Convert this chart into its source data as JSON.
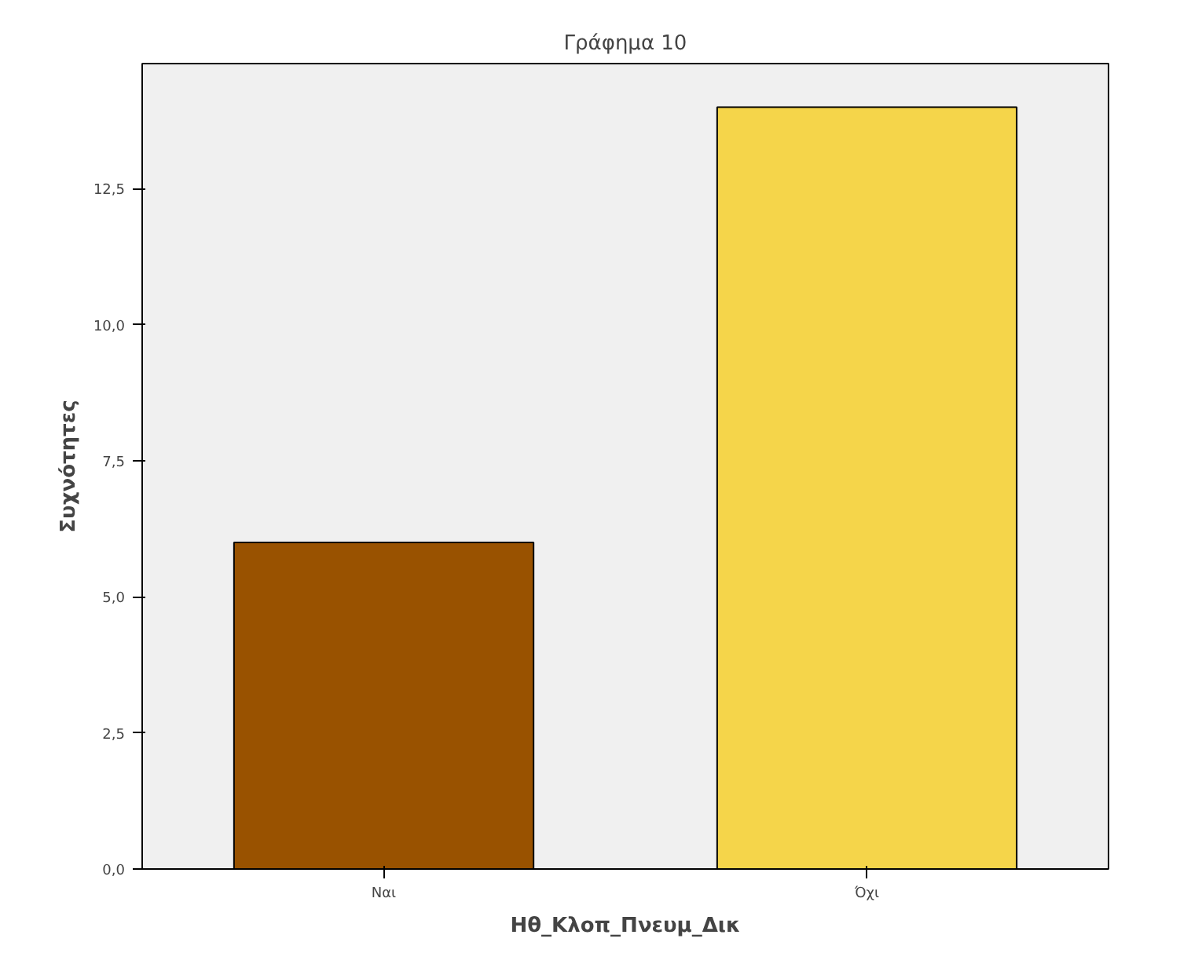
{
  "chart_data": {
    "type": "bar",
    "title": "Γράφημα 10",
    "xlabel": "Ηθ_Κλοπ_Πνευμ_Δικ",
    "ylabel": "Συχνότητες",
    "categories": [
      "Ναι",
      "Όχι"
    ],
    "values": [
      6,
      14
    ],
    "colors": [
      "#995200",
      "#f5d54a"
    ],
    "ylim": [
      0,
      14.8
    ],
    "yticks": [
      {
        "value": 0,
        "label": "0,0"
      },
      {
        "value": 2.5,
        "label": "2,5"
      },
      {
        "value": 5,
        "label": "5,0"
      },
      {
        "value": 7.5,
        "label": "7,5"
      },
      {
        "value": 10,
        "label": "10,0"
      },
      {
        "value": 12.5,
        "label": "12,5"
      }
    ],
    "grid": false
  }
}
